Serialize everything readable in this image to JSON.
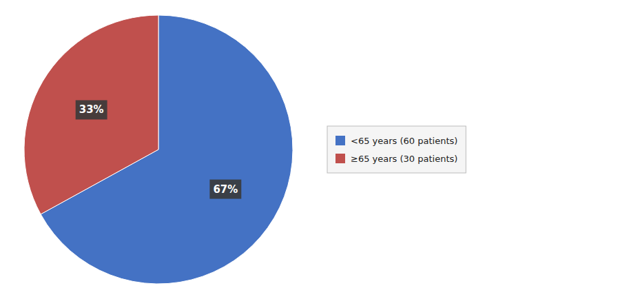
{
  "chart_data": {
    "type": "pie",
    "categories": [
      "<65 years (60 patients)",
      "≥65 years (30 patients)"
    ],
    "values": [
      67,
      33
    ],
    "value_labels": [
      "67%",
      "33%"
    ],
    "colors": [
      "#4472C4",
      "#C0504D"
    ],
    "data_labels": true,
    "legend": "right"
  }
}
